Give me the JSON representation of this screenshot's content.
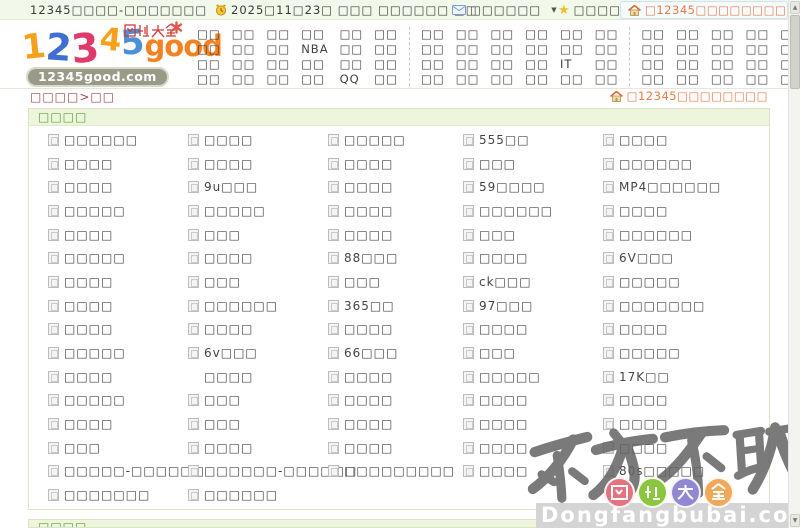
{
  "topbar": {
    "site_title": "12345□□□□-□□□□□□□",
    "date": "2025□11□23□ □□□ □□□□□□ □□",
    "mail": "□□□□□□",
    "favorites": "□□□□",
    "home_link": "□12345□□□□□□□□"
  },
  "logo": {
    "chars": [
      "1",
      "2",
      "3",
      "4",
      "5",
      "good"
    ],
    "brand_cn": "网址大全",
    "domain": "12345good.com"
  },
  "nav": {
    "groups": [
      {
        "items": [
          "□□",
          "□□",
          "□□",
          "□□",
          "□□",
          "□□",
          "□□",
          "□□",
          "□□",
          "NBA",
          "□□",
          "□□",
          "□□",
          "□□",
          "□□",
          "□□",
          "□□",
          "□□",
          "□□",
          "□□",
          "□□",
          "□□",
          "QQ",
          "□□"
        ]
      },
      {
        "items": [
          "□□",
          "□□",
          "□□",
          "□□",
          "□□",
          "□□",
          "□□",
          "□□",
          "□□",
          "□□",
          "□□",
          "□□",
          "□□",
          "□□",
          "□□",
          "□□",
          "IT",
          "□□",
          "□□",
          "□□",
          "□□",
          "□□",
          "□□",
          "□□"
        ]
      },
      {
        "items": [
          "□□",
          "□□",
          "□□",
          "□□",
          "□□",
          "□□",
          "□□",
          "□□",
          "□□",
          "□□",
          "□□",
          "□□",
          "□□",
          "□□",
          "□□",
          "□□",
          "□□",
          "□□",
          "□□",
          "□□",
          "□□",
          "□□",
          "□□",
          "□□"
        ]
      }
    ],
    "highlight": [
      2,
      23
    ]
  },
  "breadcrumb": {
    "path": "□□□□>□□",
    "home_link": "□12345□□□□□□□□"
  },
  "section": {
    "title": "□□□□"
  },
  "links": {
    "columns": [
      {
        "items": [
          "□□□□□□",
          "□□□□",
          "□□□□",
          "□□□□□",
          "□□□□",
          "□□□□□",
          "□□□□",
          "□□□□",
          "□□□□",
          "□□□□□",
          "□□□□",
          "□□□□□",
          "□□□□",
          "□□□",
          "□□□□□-□□□□□□",
          "□□□□□□□"
        ]
      },
      {
        "items": [
          "□□□□",
          "□□□□",
          "9u□□□",
          "□□□□□",
          "□□□",
          "□□□□",
          "□□□",
          "□□□□□□",
          "□□□□",
          "6v□□□",
          {
            "label": "□□□□",
            "no_icon": true
          },
          "□□□",
          "□□□",
          "□□□□",
          "□□□□□□-□□□□□□",
          "□□□□□□"
        ]
      },
      {
        "items": [
          "□□□□□",
          "□□□□",
          "□□□□",
          "□□□□",
          "□□□□",
          "88□□□",
          "□□□",
          "365□□",
          "□□□□",
          "66□□□",
          "□□□□",
          "□□□□",
          "□□□□",
          "□□□□",
          "□□□□□□□□□"
        ]
      },
      {
        "items": [
          "555□□",
          "□□□",
          "59□□□□",
          "□□□□□□",
          "□□□",
          "□□□□",
          "ck□□□",
          "97□□□",
          "□□□□",
          "□□□",
          "□□□□□",
          "□□□□",
          "□□□□",
          "□□□□",
          "□□□□"
        ]
      },
      {
        "items": [
          "□□□□",
          "□□□□□□",
          "MP4□□□□□□",
          "□□□□",
          "□□□□□□",
          "6V□□□",
          "□□□□□",
          "□□□□□□□",
          "□□□□",
          "□□□□□",
          "17K□□",
          "□□□□",
          "□□□□",
          "□□□□",
          "80s□□□□□"
        ]
      }
    ]
  },
  "bottom_section": {
    "title": "□□□□"
  },
  "watermark": {
    "calligraphy": "东方不败",
    "badges": [
      "网",
      "址",
      "大",
      "全"
    ],
    "badge_colors": [
      "#e5737f",
      "#8cc63f",
      "#9188d4",
      "#f0a85a"
    ],
    "domain": "Dongfangbubai.com"
  }
}
